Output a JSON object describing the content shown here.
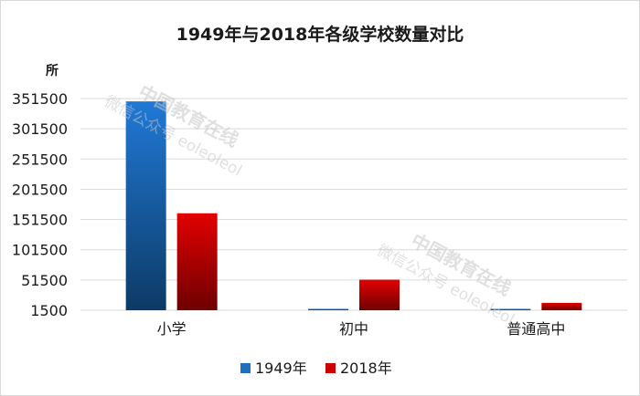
{
  "chart_data": {
    "type": "bar",
    "title": "1949年与2018年各级学校数量对比",
    "ylabel": "所",
    "categories": [
      "小学",
      "初中",
      "普通高中"
    ],
    "series": [
      {
        "name": "1949年",
        "values": [
          346800,
          3090,
          1090
        ],
        "color": "#1f6fbf"
      },
      {
        "name": "2018年",
        "values": [
          161800,
          51980,
          13700
        ],
        "color": "#cc0000"
      }
    ],
    "ylim": [
      1500,
      351500
    ],
    "yticks": [
      1500,
      51500,
      101500,
      151500,
      201500,
      251500,
      301500,
      351500
    ],
    "grid": true,
    "legend_position": "bottom"
  },
  "watermark": {
    "brand": "中国教育在线",
    "subtitle": "微信公众号 eoleoleol"
  }
}
